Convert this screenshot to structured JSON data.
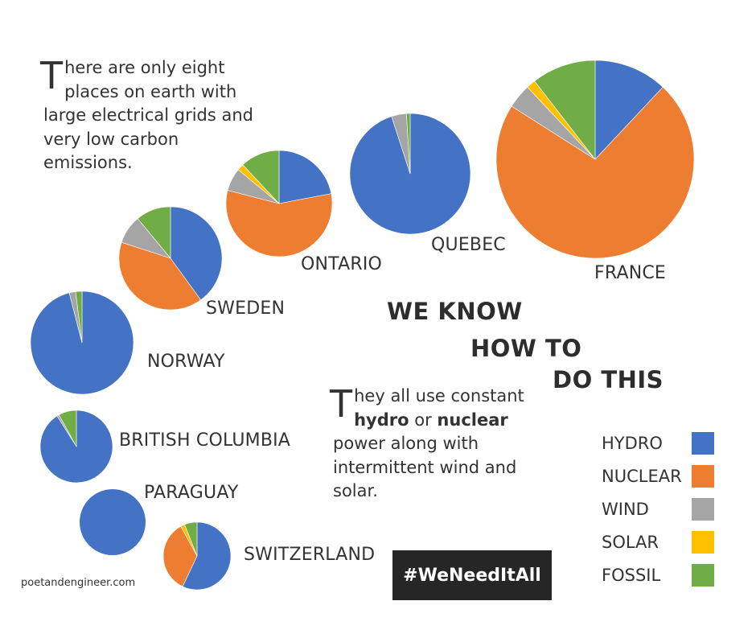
{
  "intro": {
    "dropcap": "T",
    "text": "here are only eight places on earth with large electrical grids and very low carbon emissions."
  },
  "headline": [
    "WE KNOW",
    "HOW TO",
    "DO THIS"
  ],
  "body": {
    "dropcap": "T",
    "text1": "hey all use constant ",
    "bold1": "hydro",
    "text2": " or ",
    "bold2": "nuclear",
    "text3": " power along with intermittent wind and solar."
  },
  "hashtag": "#WeNeedItAll",
  "credit": "poetandengineer.com",
  "colors": {
    "hydro": "#4472C4",
    "nuclear": "#ED7D31",
    "wind": "#A5A5A5",
    "solar": "#FFC000",
    "fossil": "#70AD47"
  },
  "legend": [
    {
      "label": "HYDRO",
      "key": "hydro"
    },
    {
      "label": "NUCLEAR",
      "key": "nuclear"
    },
    {
      "label": "WIND",
      "key": "wind"
    },
    {
      "label": "SOLAR",
      "key": "solar"
    },
    {
      "label": "FOSSIL",
      "key": "fossil"
    }
  ],
  "chart_data": {
    "type": "pie",
    "categories": [
      "HYDRO",
      "NUCLEAR",
      "WIND",
      "SOLAR",
      "FOSSIL"
    ],
    "series": [
      {
        "name": "FRANCE",
        "values": [
          12,
          72,
          4,
          1.5,
          10.5
        ]
      },
      {
        "name": "QUEBEC",
        "values": [
          95,
          0,
          4,
          0,
          1
        ]
      },
      {
        "name": "ONTARIO",
        "values": [
          22,
          57,
          7,
          2,
          12
        ]
      },
      {
        "name": "SWEDEN",
        "values": [
          40,
          40,
          9,
          0,
          11
        ]
      },
      {
        "name": "NORWAY",
        "values": [
          96,
          0,
          2,
          0,
          2
        ]
      },
      {
        "name": "BRITISH COLUMBIA",
        "values": [
          91,
          0,
          1,
          0,
          8
        ]
      },
      {
        "name": "PARAGUAY",
        "values": [
          100,
          0,
          0,
          0,
          0
        ]
      },
      {
        "name": "SWITZERLAND",
        "values": [
          57,
          35,
          0,
          2,
          6
        ]
      }
    ]
  }
}
